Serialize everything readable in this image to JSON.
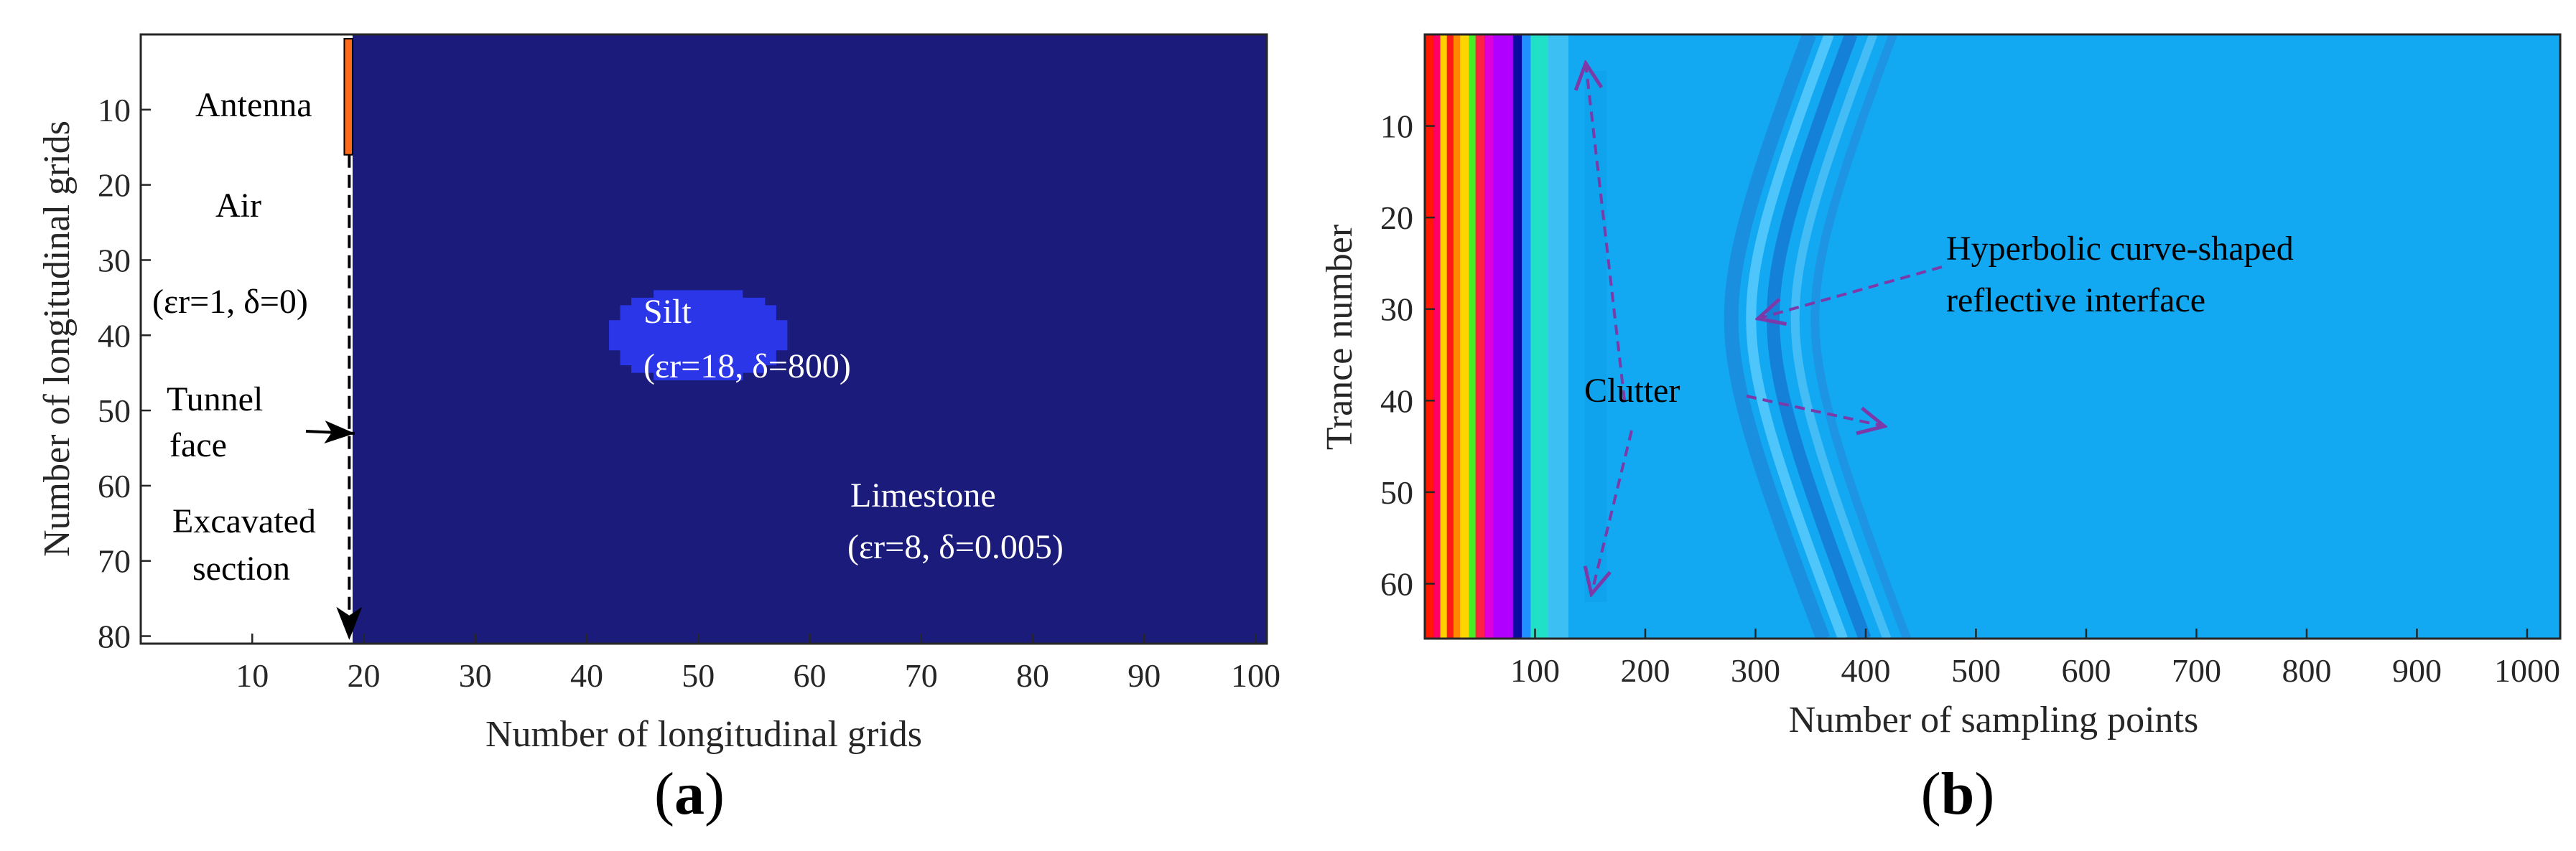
{
  "chart_data": [
    {
      "type": "heatmap",
      "panel_label": "a",
      "xlabel": "Number of longitudinal grids",
      "ylabel": "Number of longitudinal grids",
      "xlim": [
        0,
        101
      ],
      "ylim": [
        81,
        0
      ],
      "x_ticks": [
        10,
        20,
        30,
        40,
        50,
        60,
        70,
        80,
        90,
        100
      ],
      "y_ticks": [
        10,
        20,
        30,
        40,
        50,
        60,
        70,
        80
      ],
      "regions": [
        {
          "name": "Air",
          "x_range": [
            0,
            19
          ],
          "y_range": [
            0,
            81
          ],
          "color": "#ffffff"
        },
        {
          "name": "Antenna",
          "x_range": [
            18,
            19
          ],
          "y_range": [
            0,
            16
          ],
          "color": "#ff6a1a"
        },
        {
          "name": "Limestone",
          "x_range": [
            19,
            101
          ],
          "y_range": [
            0,
            81
          ],
          "color": "#1a1b7a"
        },
        {
          "name": "Silt",
          "shape": "ellipse",
          "center": [
            50,
            40
          ],
          "radius_x": 8,
          "radius_y": 6.5,
          "color": "#2a36e8"
        }
      ],
      "annotations": {
        "antenna": "Antenna",
        "air": "Air",
        "air_params": "(εr=1, δ=0)",
        "tunnel_face_1": "Tunnel",
        "tunnel_face_2": "face",
        "excavated_1": "Excavated",
        "excavated_2": "section",
        "silt": "Silt",
        "silt_params": "(εr=18, δ=800)",
        "limestone": "Limestone",
        "limestone_params": "(εr=8, δ=0.005)"
      }
    },
    {
      "type": "heatmap",
      "panel_label": "b",
      "xlabel": "Number of sampling points",
      "ylabel": "Trance number",
      "xlim": [
        0,
        1030
      ],
      "ylim": [
        66,
        0
      ],
      "x_ticks": [
        100,
        200,
        300,
        400,
        500,
        600,
        700,
        800,
        900,
        1000
      ],
      "y_ticks": [
        10,
        20,
        30,
        40,
        50,
        60
      ],
      "background_color": "#12a9f2",
      "direct_wave_bands": [
        {
          "x": [
            0,
            8
          ],
          "color": "#ff1a00"
        },
        {
          "x": [
            8,
            14
          ],
          "color": "#ff0066"
        },
        {
          "x": [
            14,
            20
          ],
          "color": "#ffd000"
        },
        {
          "x": [
            20,
            26
          ],
          "color": "#ff1a1a"
        },
        {
          "x": [
            26,
            32
          ],
          "color": "#ff8800"
        },
        {
          "x": [
            32,
            40
          ],
          "color": "#ffd500"
        },
        {
          "x": [
            40,
            46
          ],
          "color": "#44ee22"
        },
        {
          "x": [
            46,
            54
          ],
          "color": "#ff2244"
        },
        {
          "x": [
            54,
            62
          ],
          "color": "#dd00dd"
        },
        {
          "x": [
            62,
            80
          ],
          "color": "#b000ff"
        },
        {
          "x": [
            80,
            88
          ],
          "color": "#0a0aa0"
        },
        {
          "x": [
            88,
            96
          ],
          "color": "#1e90ff"
        },
        {
          "x": [
            96,
            112
          ],
          "color": "#20e0c8"
        },
        {
          "x": [
            112,
            130
          ],
          "color": "#3cc0f4"
        }
      ],
      "hyperbola": {
        "apex_trace": 31,
        "apex_sample": 290,
        "a": 40,
        "b": 12
      },
      "annotations": {
        "hyperbola_1": "Hyperbolic curve-shaped",
        "hyperbola_2": "reflective interface",
        "clutter": "Clutter"
      }
    }
  ],
  "colors": {
    "annotation_arrow": "#7b3aa8",
    "axis": "#262626"
  }
}
